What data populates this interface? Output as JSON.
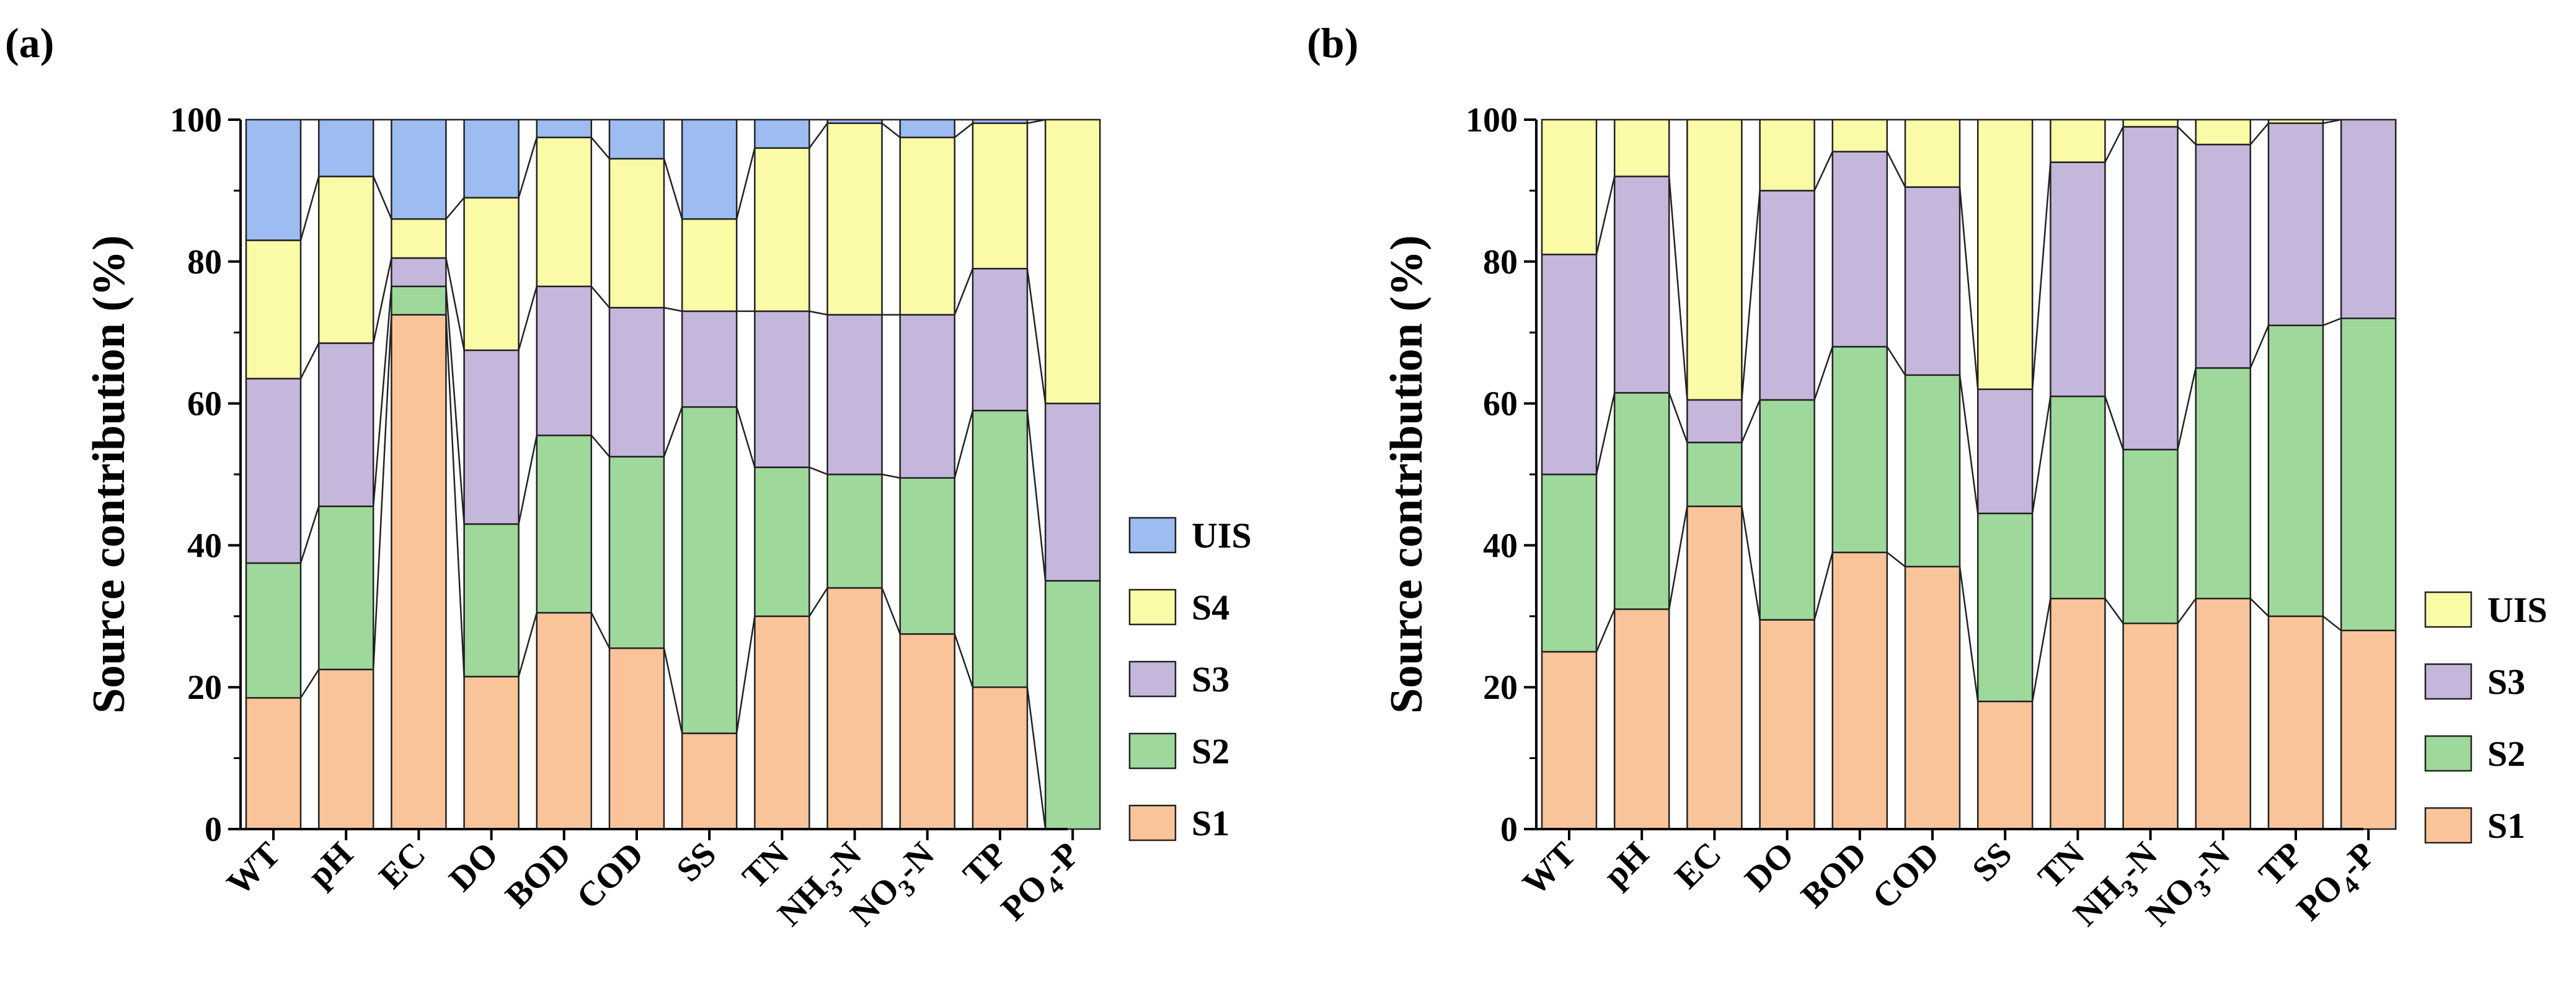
{
  "chart_data": [
    {
      "panel_label": "(a)",
      "type": "bar",
      "stacked": true,
      "ylabel": "Source contribution (%)",
      "ylim": [
        0,
        100
      ],
      "yticks": [
        0,
        20,
        40,
        60,
        80,
        100
      ],
      "categories": [
        {
          "base": "WT",
          "sub": "",
          "post": ""
        },
        {
          "base": "pH",
          "sub": "",
          "post": ""
        },
        {
          "base": "EC",
          "sub": "",
          "post": ""
        },
        {
          "base": "DO",
          "sub": "",
          "post": ""
        },
        {
          "base": "BOD",
          "sub": "",
          "post": ""
        },
        {
          "base": "COD",
          "sub": "",
          "post": ""
        },
        {
          "base": "SS",
          "sub": "",
          "post": ""
        },
        {
          "base": "TN",
          "sub": "",
          "post": ""
        },
        {
          "base": "NH",
          "sub": "3",
          "post": "-N"
        },
        {
          "base": "NO",
          "sub": "3",
          "post": "-N"
        },
        {
          "base": "TP",
          "sub": "",
          "post": ""
        },
        {
          "base": "PO",
          "sub": "4",
          "post": "-P"
        }
      ],
      "series": [
        {
          "name": "S1",
          "color": "#f9c49a",
          "values": [
            18.5,
            22.5,
            72.5,
            21.5,
            30.5,
            25.5,
            13.5,
            30,
            34,
            27.5,
            20,
            0
          ]
        },
        {
          "name": "S2",
          "color": "#9ed89b",
          "values": [
            19,
            23,
            4,
            21.5,
            25,
            27,
            46,
            21,
            16,
            22,
            39,
            35
          ]
        },
        {
          "name": "S3",
          "color": "#c5b6dc",
          "values": [
            26,
            23,
            4,
            24.5,
            21,
            21,
            13.5,
            22,
            22.5,
            23,
            20,
            25
          ]
        },
        {
          "name": "S4",
          "color": "#fbfaa6",
          "values": [
            19.5,
            23.5,
            5.5,
            21.5,
            21,
            21,
            13,
            23,
            27,
            25,
            20.5,
            40
          ]
        },
        {
          "name": "UIS",
          "color": "#9dbdf2",
          "values": [
            17,
            8,
            14,
            11,
            2.5,
            5.5,
            14,
            4,
            0.5,
            2.5,
            0.5,
            0
          ]
        }
      ],
      "legend": [
        "UIS",
        "S4",
        "S3",
        "S2",
        "S1"
      ],
      "legend_position": "right"
    },
    {
      "panel_label": "(b)",
      "type": "bar",
      "stacked": true,
      "ylabel": "Source contribution (%)",
      "ylim": [
        0,
        100
      ],
      "yticks": [
        0,
        20,
        40,
        60,
        80,
        100
      ],
      "categories": [
        {
          "base": "WT",
          "sub": "",
          "post": ""
        },
        {
          "base": "pH",
          "sub": "",
          "post": ""
        },
        {
          "base": "EC",
          "sub": "",
          "post": ""
        },
        {
          "base": "DO",
          "sub": "",
          "post": ""
        },
        {
          "base": "BOD",
          "sub": "",
          "post": ""
        },
        {
          "base": "COD",
          "sub": "",
          "post": ""
        },
        {
          "base": "SS",
          "sub": "",
          "post": ""
        },
        {
          "base": "TN",
          "sub": "",
          "post": ""
        },
        {
          "base": "NH",
          "sub": "3",
          "post": "-N"
        },
        {
          "base": "NO",
          "sub": "3",
          "post": "-N"
        },
        {
          "base": "TP",
          "sub": "",
          "post": ""
        },
        {
          "base": "PO",
          "sub": "4",
          "post": "-P"
        }
      ],
      "series": [
        {
          "name": "S1",
          "color": "#f9c49a",
          "values": [
            25,
            31,
            45.5,
            29.5,
            39,
            37,
            18,
            32.5,
            29,
            32.5,
            30,
            28
          ]
        },
        {
          "name": "S2",
          "color": "#9ed89b",
          "values": [
            25,
            30.5,
            9,
            31,
            29,
            27,
            26.5,
            28.5,
            24.5,
            32.5,
            41,
            44
          ]
        },
        {
          "name": "S3",
          "color": "#c5b6dc",
          "values": [
            31,
            30.5,
            6,
            29.5,
            27.5,
            26.5,
            17.5,
            33,
            45.5,
            31.5,
            28.5,
            28
          ]
        },
        {
          "name": "UIS",
          "color": "#fbfaa6",
          "values": [
            19,
            8,
            39.5,
            10,
            4.5,
            9.5,
            38,
            6,
            1,
            3.5,
            0.5,
            0
          ]
        }
      ],
      "legend": [
        "UIS",
        "S3",
        "S2",
        "S1"
      ],
      "legend_position": "right"
    }
  ]
}
